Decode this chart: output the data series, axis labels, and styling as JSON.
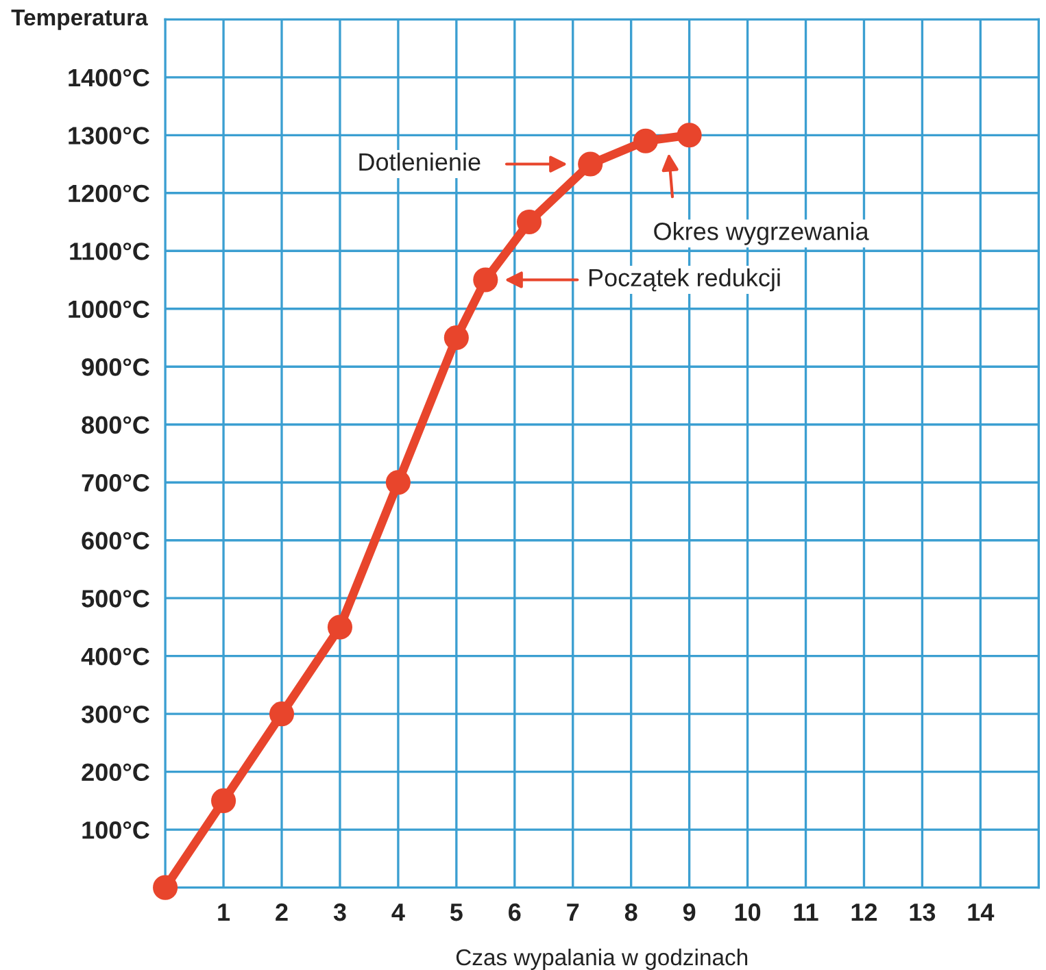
{
  "chart_data": {
    "type": "line",
    "xlabel": "Czas wypalania w godzinach",
    "ylabel": "Temperatura",
    "x": [
      0,
      1,
      2,
      3,
      4,
      5,
      5.5,
      6.25,
      7.3,
      8.25,
      9
    ],
    "series": [
      {
        "color": "#e8452c",
        "values": [
          0,
          150,
          300,
          450,
          700,
          950,
          1050,
          1150,
          1250,
          1290,
          1300
        ]
      }
    ],
    "marker": "circle",
    "line_style": "solid",
    "grid": true,
    "xlim": [
      0,
      15
    ],
    "xticks": [
      1,
      2,
      3,
      4,
      5,
      6,
      7,
      8,
      9,
      10,
      11,
      12,
      13,
      14
    ],
    "ylim": [
      0,
      1500
    ],
    "yticks": [
      {
        "value": 100,
        "label": "100°C"
      },
      {
        "value": 200,
        "label": "200°C"
      },
      {
        "value": 300,
        "label": "300°C"
      },
      {
        "value": 400,
        "label": "400°C"
      },
      {
        "value": 500,
        "label": "500°C"
      },
      {
        "value": 600,
        "label": "600°C"
      },
      {
        "value": 700,
        "label": "700°C"
      },
      {
        "value": 800,
        "label": "800°C"
      },
      {
        "value": 900,
        "label": "900°C"
      },
      {
        "value": 1000,
        "label": "1000°C"
      },
      {
        "value": 1100,
        "label": "1100°C"
      },
      {
        "value": 1200,
        "label": "1200°C"
      },
      {
        "value": 1300,
        "label": "1300°C"
      },
      {
        "value": 1400,
        "label": "1400°C"
      },
      {
        "value": 1500,
        "label": null
      }
    ],
    "annotations": [
      "Dotlenienie",
      "Początek redukcji",
      "Okres wygrzewania"
    ]
  }
}
